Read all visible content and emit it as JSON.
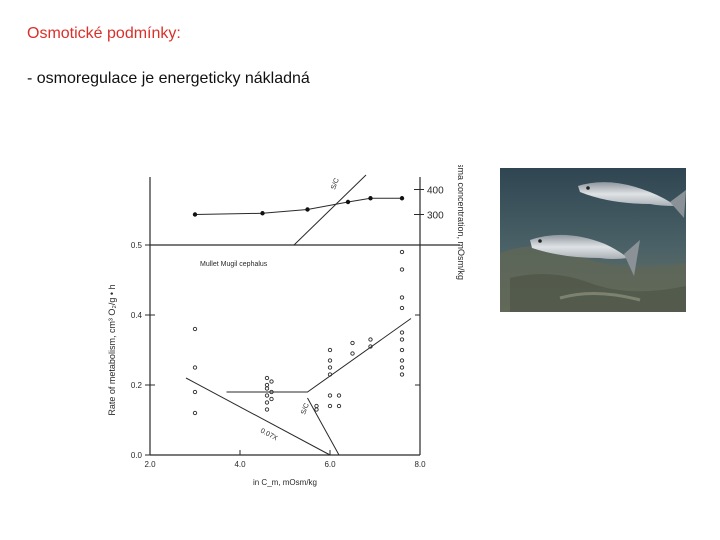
{
  "slide": {
    "title": "Osmotické podmínky:",
    "bullet": "- osmoregulace je energeticky nákladná"
  },
  "colors": {
    "title": "#d9302a",
    "text": "#111111",
    "ink": "#2a2a2a",
    "photo_sea": "#3d5560",
    "photo_floor": "#6b6f5e",
    "fish_body": "#c9ced2"
  },
  "photo": {
    "icon": "mullet-fish-photo",
    "subject": "two grey mullets swimming over a rocky sea floor"
  },
  "chart_data": [
    {
      "type": "scatter",
      "panel": "metabolic-rate",
      "xlabel": "in C_m, mOsm/kg",
      "ylabel": "Rate of metabolism, cm³ O₂/g • h",
      "xlim": [
        2.0,
        8.0
      ],
      "ylim": [
        0.0,
        0.6
      ],
      "x_tick_labels": [
        "2.0",
        "4.0",
        "6.0",
        "8.0"
      ],
      "y_tick_labels": [
        "0.0",
        "0.2",
        "0.4",
        "0.5"
      ],
      "species_label": "Mullet  Mugil cephalus",
      "annotations": [
        "S/C",
        "0.07X"
      ],
      "points": [
        {
          "x": 3.0,
          "y": 0.36
        },
        {
          "x": 3.0,
          "y": 0.25
        },
        {
          "x": 3.0,
          "y": 0.18
        },
        {
          "x": 3.0,
          "y": 0.12
        },
        {
          "x": 4.6,
          "y": 0.22
        },
        {
          "x": 4.6,
          "y": 0.2
        },
        {
          "x": 4.6,
          "y": 0.19
        },
        {
          "x": 4.6,
          "y": 0.17
        },
        {
          "x": 4.6,
          "y": 0.15
        },
        {
          "x": 4.6,
          "y": 0.13
        },
        {
          "x": 4.7,
          "y": 0.21
        },
        {
          "x": 4.7,
          "y": 0.18
        },
        {
          "x": 4.7,
          "y": 0.16
        },
        {
          "x": 5.7,
          "y": 0.14
        },
        {
          "x": 5.7,
          "y": 0.13
        },
        {
          "x": 6.0,
          "y": 0.3
        },
        {
          "x": 6.0,
          "y": 0.27
        },
        {
          "x": 6.0,
          "y": 0.25
        },
        {
          "x": 6.0,
          "y": 0.23
        },
        {
          "x": 6.0,
          "y": 0.17
        },
        {
          "x": 6.0,
          "y": 0.14
        },
        {
          "x": 6.2,
          "y": 0.17
        },
        {
          "x": 6.2,
          "y": 0.14
        },
        {
          "x": 6.5,
          "y": 0.32
        },
        {
          "x": 6.5,
          "y": 0.29
        },
        {
          "x": 6.9,
          "y": 0.33
        },
        {
          "x": 6.9,
          "y": 0.31
        },
        {
          "x": 7.6,
          "y": 0.58
        },
        {
          "x": 7.6,
          "y": 0.53
        },
        {
          "x": 7.6,
          "y": 0.45
        },
        {
          "x": 7.6,
          "y": 0.42
        },
        {
          "x": 7.6,
          "y": 0.35
        },
        {
          "x": 7.6,
          "y": 0.33
        },
        {
          "x": 7.6,
          "y": 0.3
        },
        {
          "x": 7.6,
          "y": 0.27
        },
        {
          "x": 7.6,
          "y": 0.25
        },
        {
          "x": 7.6,
          "y": 0.23
        }
      ],
      "line_segments": [
        {
          "name": "",
          "points": [
            [
              3.7,
              0.18
            ],
            [
              5.5,
              0.18
            ],
            [
              7.8,
              0.39
            ]
          ]
        },
        {
          "name": "",
          "points": [
            [
              2.8,
              0.22
            ],
            [
              6.0,
              0.0
            ]
          ]
        }
      ]
    },
    {
      "type": "line",
      "panel": "plasma-concentration",
      "ylabel": "Plasma concentration, mOsm/kg",
      "y_tick_labels": [
        "300",
        "400"
      ],
      "x": [
        3.0,
        4.5,
        5.5,
        6.4,
        6.9,
        7.6
      ],
      "values": [
        300,
        305,
        320,
        350,
        365,
        365
      ]
    }
  ]
}
